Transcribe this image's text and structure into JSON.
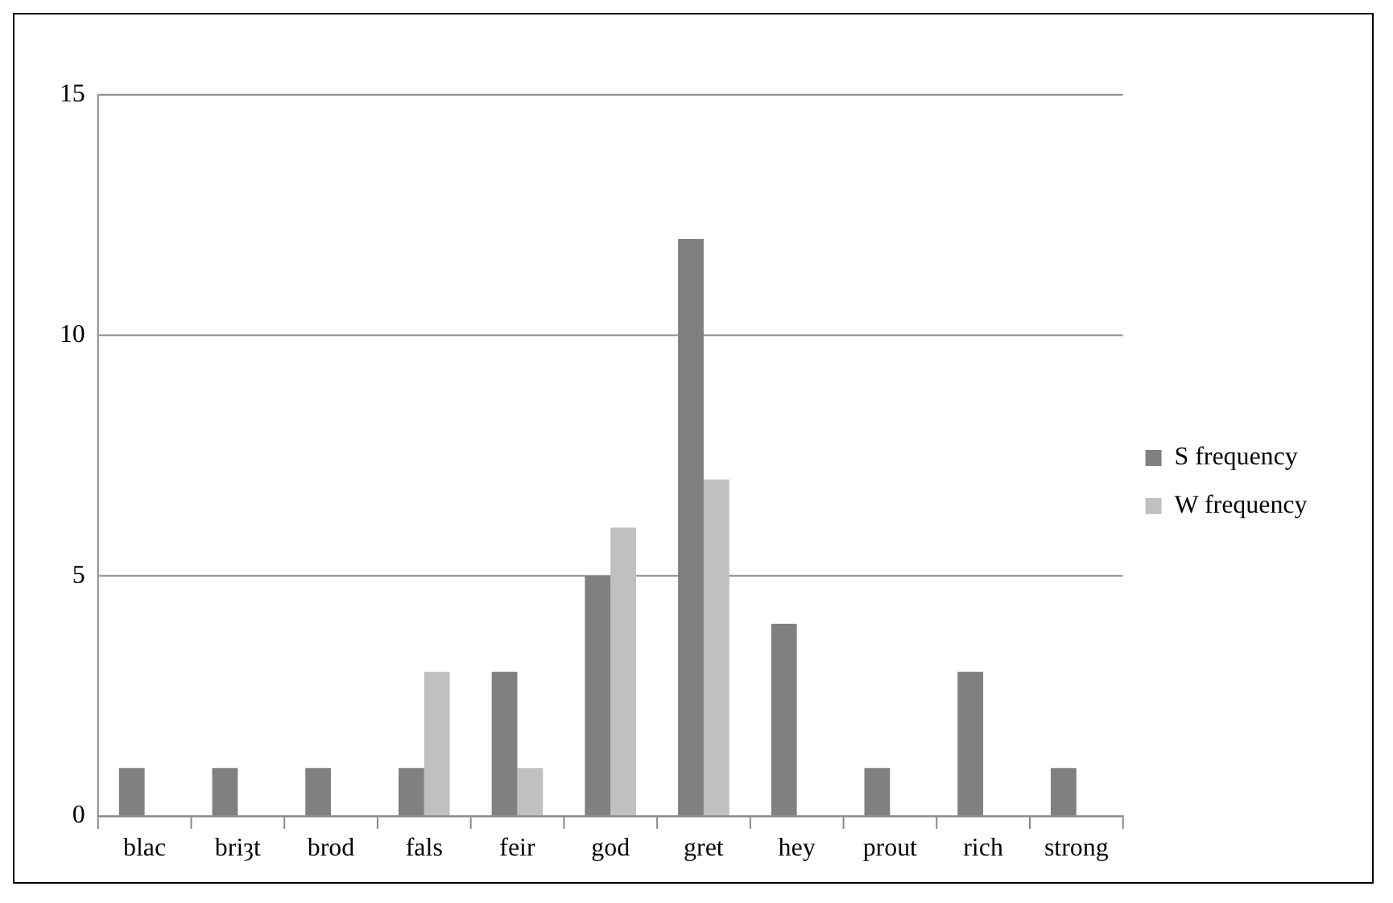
{
  "chart_data": {
    "type": "bar",
    "categories": [
      "blac",
      "briȝt",
      "brod",
      "fals",
      "feir",
      "god",
      "gret",
      "hey",
      "prout",
      "rich",
      "strong"
    ],
    "series": [
      {
        "name": "S frequency",
        "color": "#808080",
        "values": [
          1,
          1,
          1,
          1,
          3,
          5,
          12,
          4,
          1,
          3,
          1
        ]
      },
      {
        "name": "W frequency",
        "color": "#c0c0c0",
        "values": [
          0,
          0,
          0,
          3,
          1,
          6,
          7,
          0,
          0,
          0,
          0
        ]
      }
    ],
    "ylim": [
      0,
      15
    ],
    "yticks": [
      0,
      5,
      10,
      15
    ],
    "grid": "y",
    "legend": "right"
  }
}
